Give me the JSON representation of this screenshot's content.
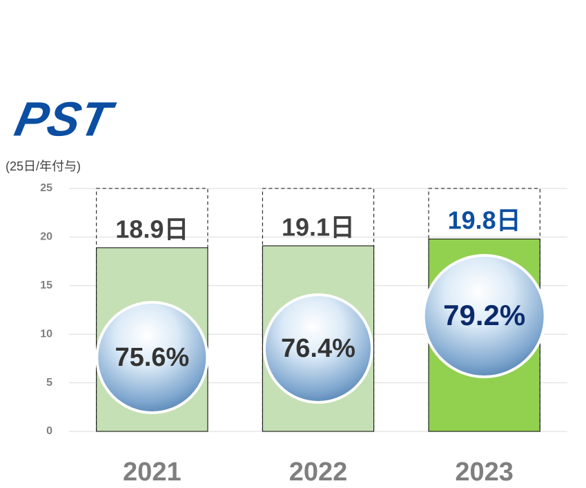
{
  "chart_data": {
    "type": "bar",
    "logo": "PST",
    "y_label": "(25日/年付与)",
    "categories": [
      "2021",
      "2022",
      "2023"
    ],
    "values": [
      18.9,
      19.1,
      19.8
    ],
    "value_labels": [
      "18.9日",
      "19.1日",
      "19.8日"
    ],
    "colors": [
      "#c5e0b4",
      "#c5e0b4",
      "#92d050"
    ],
    "label_colors": [
      "#404040",
      "#404040",
      "#0b4ea2"
    ],
    "rates": [
      75.6,
      76.4,
      79.2
    ],
    "rate_labels": [
      "75.6%",
      "76.4%",
      "79.2%"
    ],
    "rate_colors": [
      "#333333",
      "#333333",
      "#0b2a6b"
    ],
    "ylim": [
      0,
      25
    ],
    "yticks": [
      0,
      5,
      10,
      15,
      20,
      25
    ],
    "grid": true
  }
}
